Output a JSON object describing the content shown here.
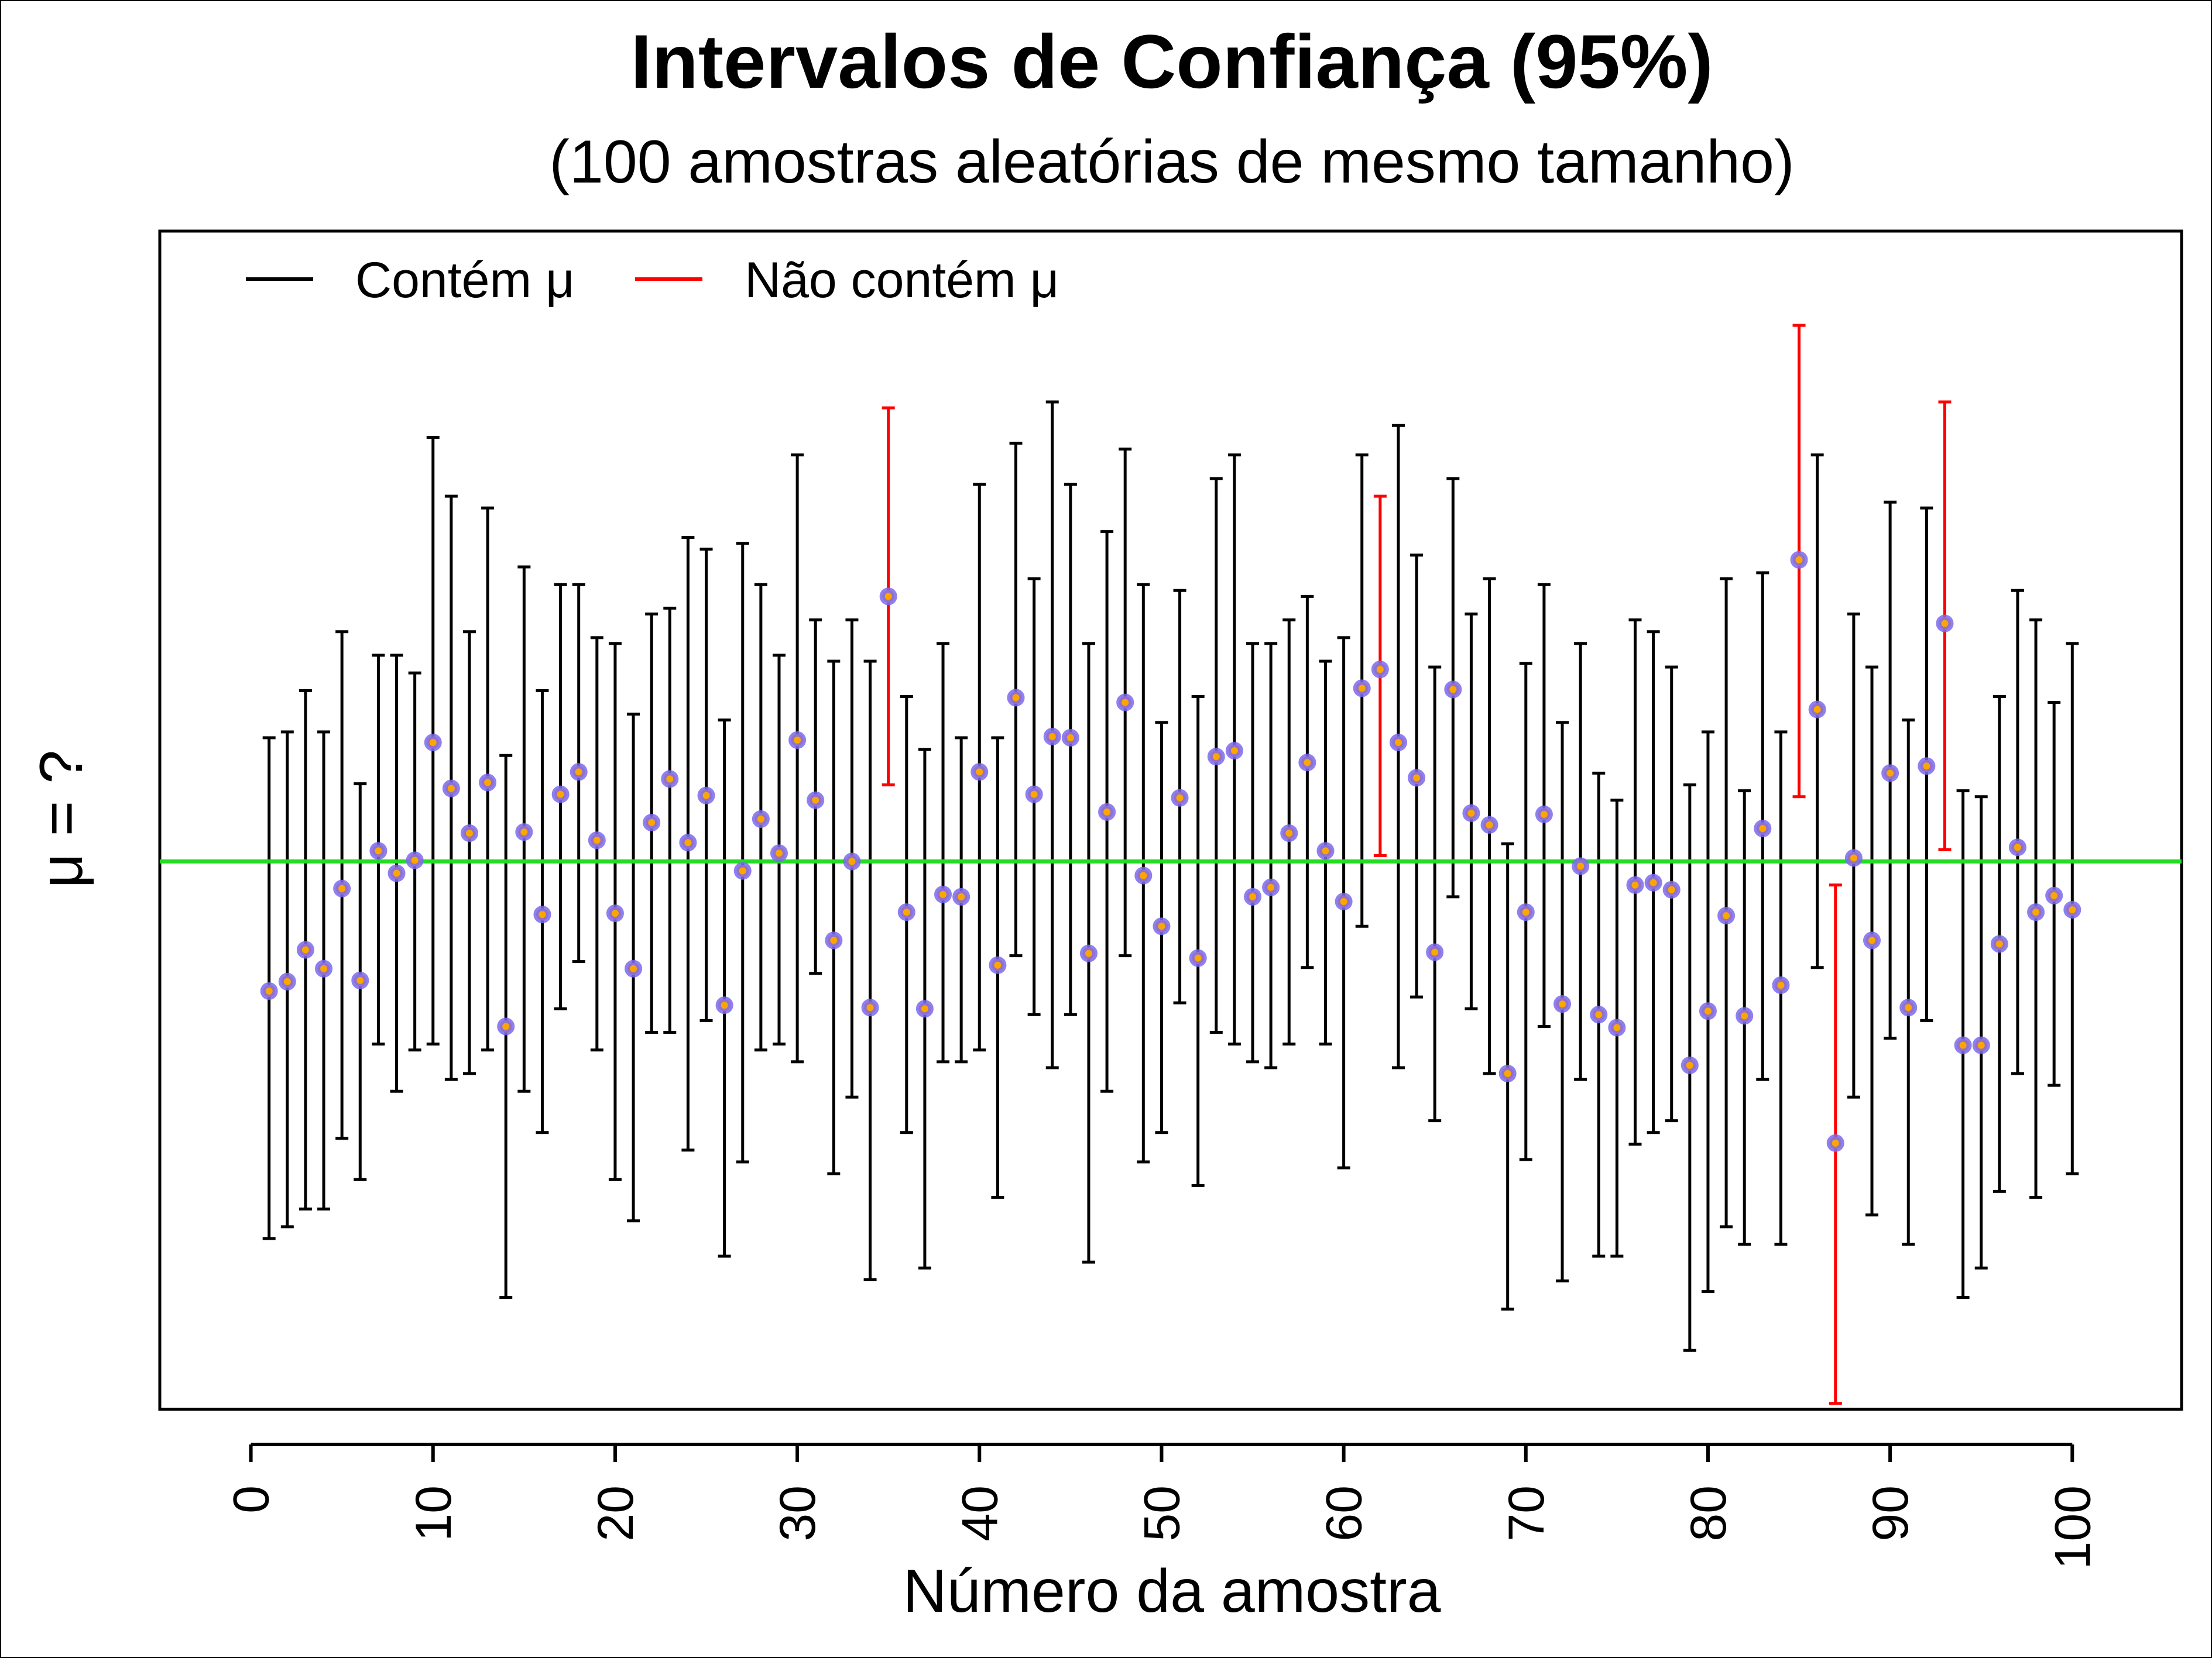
{
  "chart_data": {
    "type": "errorbar",
    "title": "Intervalos de Confiança (95%)",
    "subtitle": "(100 amostras aleatórias de mesmo tamanho)",
    "xlabel": "Número da amostra",
    "ylabel": "μ = ?",
    "xlim": [
      -5,
      106
    ],
    "ylim": [
      -4.65,
      5.35
    ],
    "xticks": [
      0,
      10,
      20,
      30,
      40,
      50,
      60,
      70,
      80,
      90,
      100
    ],
    "reference_line": {
      "value": 0,
      "color": "#22dd22"
    },
    "legend": {
      "placement": "top-left",
      "horizontal": true,
      "entries": [
        {
          "label": "Contém μ",
          "color": "#000000"
        },
        {
          "label": "Não contém μ",
          "color": "#ff0000"
        }
      ]
    },
    "colors": {
      "contains": "#000000",
      "not_contains": "#ff0000",
      "point_ring": "#7b68ee",
      "point_fill": "#ffa500"
    },
    "samples": {
      "x": [
        1,
        2,
        3,
        4,
        5,
        6,
        7,
        8,
        9,
        10,
        11,
        12,
        13,
        14,
        15,
        16,
        17,
        18,
        19,
        20,
        21,
        22,
        23,
        24,
        25,
        26,
        27,
        28,
        29,
        30,
        31,
        32,
        33,
        34,
        35,
        36,
        37,
        38,
        39,
        40,
        41,
        42,
        43,
        44,
        45,
        46,
        47,
        48,
        49,
        50,
        51,
        52,
        53,
        54,
        55,
        56,
        57,
        58,
        59,
        60,
        61,
        62,
        63,
        64,
        65,
        66,
        67,
        68,
        69,
        70,
        71,
        72,
        73,
        74,
        75,
        76,
        77,
        78,
        79,
        80,
        81,
        82,
        83,
        84,
        85,
        86,
        87,
        88,
        89,
        90,
        91,
        92,
        93,
        94,
        95,
        96,
        97,
        98,
        99,
        100
      ],
      "mean": [
        -1.1,
        -1.02,
        -0.75,
        -0.91,
        -0.23,
        -1.01,
        0.09,
        -0.1,
        0.01,
        1.01,
        0.62,
        0.24,
        0.67,
        -1.4,
        0.25,
        -0.45,
        0.57,
        0.76,
        0.18,
        -0.44,
        -0.91,
        0.33,
        0.7,
        0.16,
        0.56,
        -1.22,
        -0.08,
        0.36,
        0.07,
        1.03,
        0.52,
        -0.67,
        0.0,
        -1.24,
        2.25,
        -0.43,
        -1.25,
        -0.28,
        -0.3,
        0.76,
        -0.88,
        1.39,
        0.57,
        1.06,
        1.05,
        -0.78,
        0.42,
        1.35,
        -0.12,
        -0.55,
        0.54,
        -0.82,
        0.89,
        0.94,
        -0.3,
        -0.22,
        0.24,
        0.84,
        0.09,
        -0.34,
        1.47,
        1.63,
        1.01,
        0.71,
        -0.77,
        1.46,
        0.41,
        0.31,
        -1.8,
        -0.43,
        0.4,
        -1.21,
        -0.04,
        -1.3,
        -1.41,
        -0.2,
        -0.18,
        -0.24,
        -1.73,
        -1.27,
        -0.46,
        -1.31,
        0.28,
        -1.05,
        2.56,
        1.29,
        -2.39,
        0.03,
        -0.67,
        0.75,
        -1.24,
        0.81,
        2.02,
        -1.56,
        -1.56,
        -0.7,
        0.12,
        -0.43,
        -0.29,
        -0.41
      ],
      "lower": [
        -3.2,
        -3.1,
        -2.95,
        -2.95,
        -2.35,
        -2.7,
        -1.55,
        -1.95,
        -1.6,
        -1.55,
        -1.85,
        -1.8,
        -1.6,
        -3.7,
        -1.95,
        -2.3,
        -1.25,
        -0.85,
        -1.6,
        -2.7,
        -3.05,
        -1.45,
        -1.45,
        -2.45,
        -1.35,
        -3.35,
        -2.55,
        -1.6,
        -1.55,
        -1.7,
        -0.95,
        -2.65,
        -2.0,
        -3.55,
        0.65,
        -2.3,
        -3.45,
        -1.7,
        -1.7,
        -1.6,
        -2.85,
        -0.8,
        -1.3,
        -1.75,
        -1.3,
        -3.4,
        -1.95,
        -0.8,
        -2.55,
        -2.3,
        -1.2,
        -2.75,
        -1.45,
        -1.55,
        -1.7,
        -1.75,
        -1.55,
        -0.9,
        -1.55,
        -2.6,
        -0.55,
        0.05,
        -1.75,
        -1.15,
        -2.2,
        -0.3,
        -1.25,
        -1.8,
        -3.8,
        -2.53,
        -1.4,
        -3.56,
        -1.85,
        -3.35,
        -3.35,
        -2.4,
        -2.3,
        -2.2,
        -4.15,
        -3.65,
        -3.1,
        -3.25,
        -1.85,
        -3.25,
        0.55,
        -0.9,
        -4.6,
        -2.0,
        -3.0,
        -1.5,
        -3.25,
        -1.35,
        0.1,
        -3.7,
        -3.45,
        -2.8,
        -1.8,
        -2.85,
        -1.9,
        -2.65
      ],
      "upper": [
        1.05,
        1.1,
        1.45,
        1.1,
        1.95,
        0.66,
        1.75,
        1.75,
        1.6,
        3.6,
        3.1,
        1.95,
        3.0,
        0.9,
        2.5,
        1.45,
        2.35,
        2.35,
        1.9,
        1.85,
        1.25,
        2.1,
        2.15,
        2.75,
        2.65,
        1.2,
        2.7,
        2.35,
        1.75,
        3.45,
        2.05,
        1.7,
        2.05,
        1.7,
        3.85,
        1.4,
        0.95,
        1.85,
        1.05,
        3.2,
        1.05,
        3.55,
        2.4,
        3.9,
        3.2,
        1.85,
        2.8,
        3.5,
        2.35,
        1.18,
        2.3,
        1.4,
        3.25,
        3.45,
        1.85,
        1.85,
        2.05,
        2.25,
        1.7,
        1.9,
        3.45,
        3.1,
        3.7,
        2.6,
        1.65,
        3.25,
        2.1,
        2.4,
        0.15,
        1.68,
        2.35,
        1.18,
        1.85,
        0.75,
        0.52,
        2.05,
        1.95,
        1.65,
        0.65,
        1.1,
        2.4,
        0.6,
        2.45,
        1.1,
        4.55,
        3.45,
        -0.2,
        2.1,
        1.65,
        3.05,
        1.2,
        3.0,
        3.9,
        0.6,
        0.55,
        1.4,
        2.3,
        2.05,
        1.35,
        1.85
      ],
      "contains_mu": [
        true,
        true,
        true,
        true,
        true,
        true,
        true,
        true,
        true,
        true,
        true,
        true,
        true,
        true,
        true,
        true,
        true,
        true,
        true,
        true,
        true,
        true,
        true,
        true,
        true,
        true,
        true,
        true,
        true,
        true,
        true,
        true,
        true,
        true,
        false,
        true,
        true,
        true,
        true,
        true,
        true,
        true,
        true,
        true,
        true,
        true,
        true,
        true,
        true,
        true,
        true,
        true,
        true,
        true,
        true,
        true,
        true,
        true,
        true,
        true,
        true,
        false,
        true,
        true,
        true,
        true,
        true,
        true,
        true,
        true,
        true,
        true,
        true,
        true,
        true,
        true,
        true,
        true,
        true,
        true,
        true,
        true,
        true,
        true,
        false,
        true,
        false,
        true,
        true,
        true,
        true,
        true,
        false,
        true,
        true,
        true,
        true,
        true,
        true,
        true
      ]
    }
  }
}
